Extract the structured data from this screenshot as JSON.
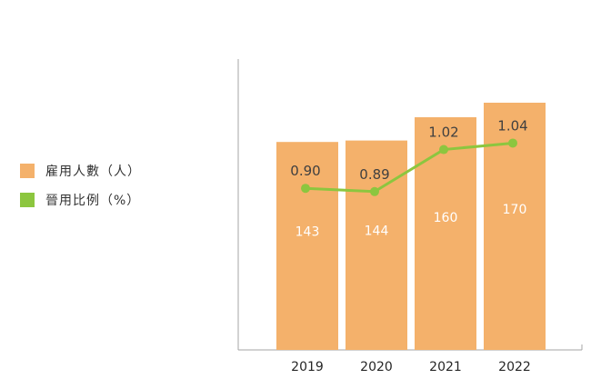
{
  "chart_data": {
    "type": "bar",
    "categories": [
      "2019",
      "2020",
      "2021",
      "2022"
    ],
    "series": [
      {
        "name": "雇用人數（人）",
        "kind": "bar",
        "color": "#f4b16b",
        "values": [
          143,
          144,
          160,
          170
        ]
      },
      {
        "name": "晉用比例（%）",
        "kind": "line",
        "color": "#8cc63f",
        "values": [
          0.9,
          0.89,
          1.02,
          1.04
        ]
      }
    ],
    "bar_labels": [
      "143",
      "144",
      "160",
      "170"
    ],
    "line_labels": [
      "0.90",
      "0.89",
      "1.02",
      "1.04"
    ],
    "bar_axis_range": [
      0,
      200
    ],
    "line_axis_range": [
      0.4,
      1.3
    ],
    "title": "",
    "xlabel": "",
    "ylabel": "",
    "grid": false,
    "legend_position": "left"
  }
}
